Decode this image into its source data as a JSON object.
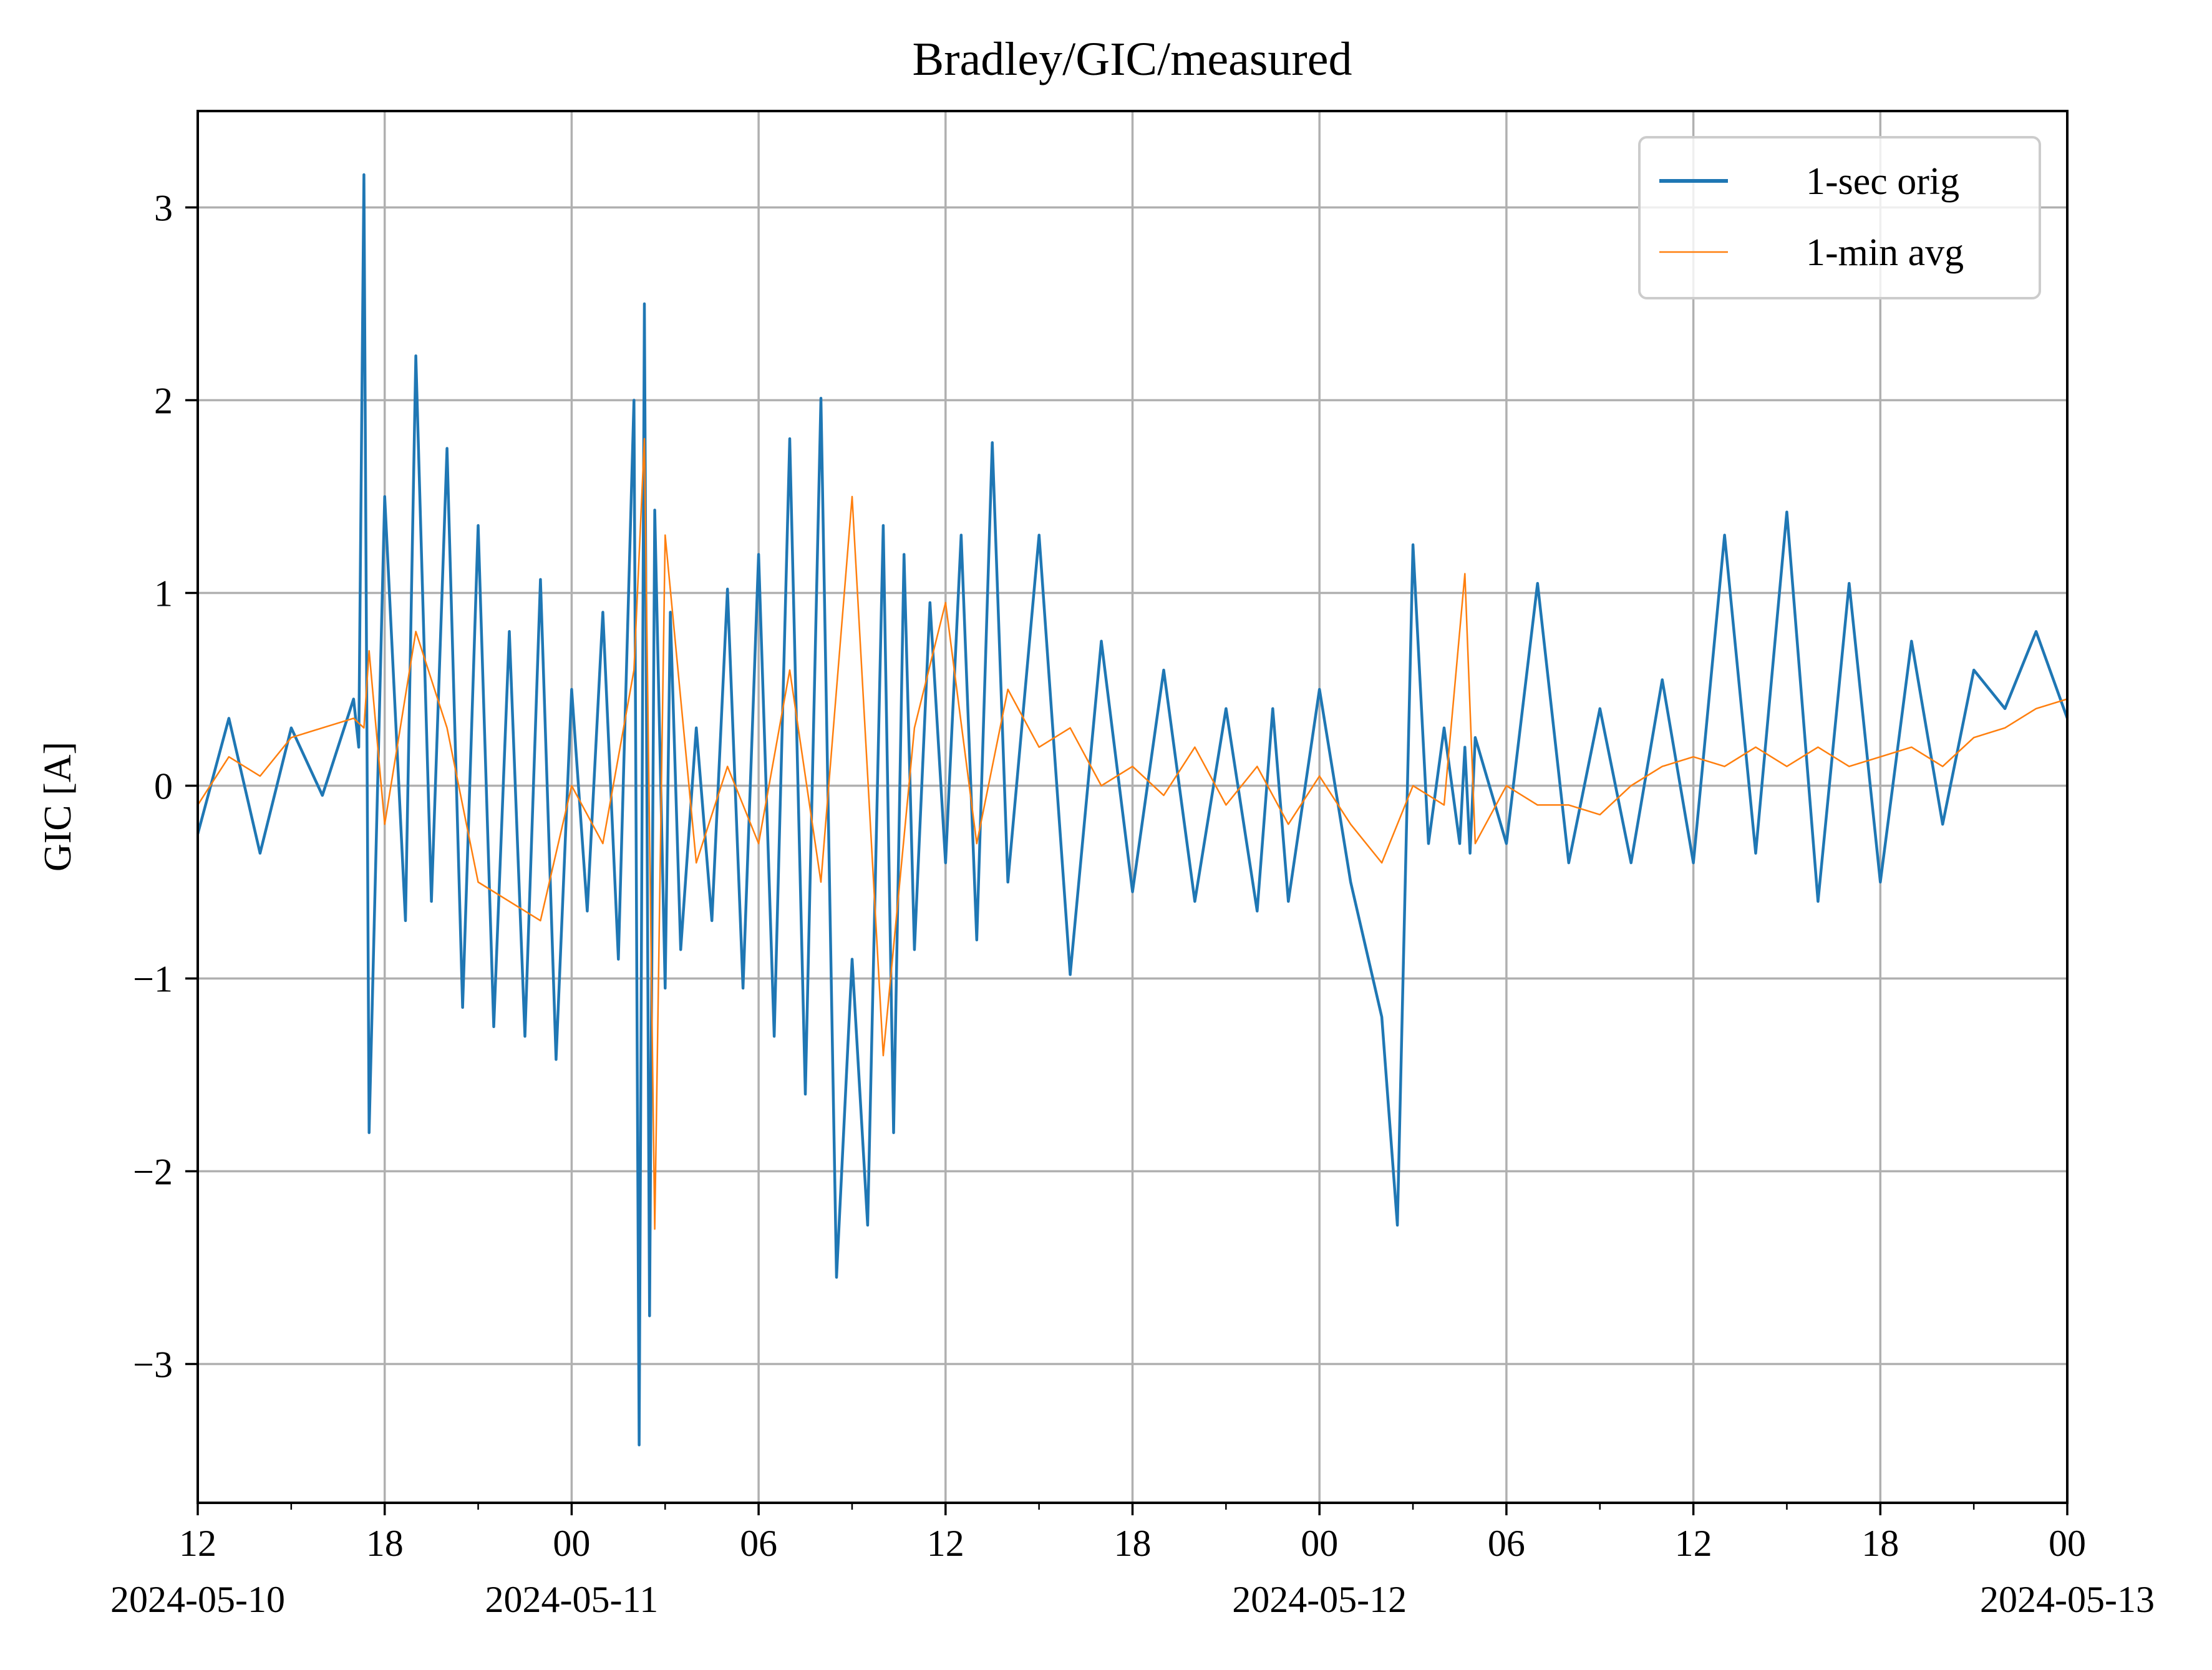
{
  "chart_data": {
    "type": "line",
    "title": "Bradley/GIC/measured",
    "xlabel": "",
    "ylabel": "GIC [A]",
    "xlim": [
      "2024-05-10 12:00",
      "2024-05-13 00:00"
    ],
    "ylim": [
      -3.72,
      3.5
    ],
    "grid": true,
    "legend_position": "top-right",
    "x_ticks": [
      {
        "value": "2024-05-10 12:00",
        "label": "12",
        "date_label": "2024-05-10"
      },
      {
        "value": "2024-05-10 18:00",
        "label": "18",
        "date_label": ""
      },
      {
        "value": "2024-05-11 00:00",
        "label": "00",
        "date_label": "2024-05-11"
      },
      {
        "value": "2024-05-11 06:00",
        "label": "06",
        "date_label": ""
      },
      {
        "value": "2024-05-11 12:00",
        "label": "12",
        "date_label": ""
      },
      {
        "value": "2024-05-11 18:00",
        "label": "18",
        "date_label": ""
      },
      {
        "value": "2024-05-12 00:00",
        "label": "00",
        "date_label": "2024-05-12"
      },
      {
        "value": "2024-05-12 06:00",
        "label": "06",
        "date_label": ""
      },
      {
        "value": "2024-05-12 12:00",
        "label": "12",
        "date_label": ""
      },
      {
        "value": "2024-05-12 18:00",
        "label": "18",
        "date_label": ""
      },
      {
        "value": "2024-05-13 00:00",
        "label": "00",
        "date_label": "2024-05-13"
      }
    ],
    "y_ticks": [
      {
        "value": -3,
        "label": "−3"
      },
      {
        "value": -2,
        "label": "−2"
      },
      {
        "value": -1,
        "label": "−1"
      },
      {
        "value": 0,
        "label": "0"
      },
      {
        "value": 1,
        "label": "1"
      },
      {
        "value": 2,
        "label": "2"
      },
      {
        "value": 3,
        "label": "3"
      }
    ],
    "series": [
      {
        "name": "1-sec orig",
        "color": "#1f77b4",
        "x": [
          "2024-05-10 12:00",
          "2024-05-10 13:00",
          "2024-05-10 14:00",
          "2024-05-10 15:00",
          "2024-05-10 16:00",
          "2024-05-10 17:00",
          "2024-05-10 17:10",
          "2024-05-10 17:20",
          "2024-05-10 17:30",
          "2024-05-10 18:00",
          "2024-05-10 18:40",
          "2024-05-10 19:00",
          "2024-05-10 19:30",
          "2024-05-10 20:00",
          "2024-05-10 20:30",
          "2024-05-10 21:00",
          "2024-05-10 21:30",
          "2024-05-10 22:00",
          "2024-05-10 22:30",
          "2024-05-10 23:00",
          "2024-05-10 23:30",
          "2024-05-11 00:00",
          "2024-05-11 00:30",
          "2024-05-11 01:00",
          "2024-05-11 01:30",
          "2024-05-11 02:00",
          "2024-05-11 02:10",
          "2024-05-11 02:20",
          "2024-05-11 02:30",
          "2024-05-11 02:40",
          "2024-05-11 03:00",
          "2024-05-11 03:10",
          "2024-05-11 03:30",
          "2024-05-11 04:00",
          "2024-05-11 04:30",
          "2024-05-11 05:00",
          "2024-05-11 05:30",
          "2024-05-11 06:00",
          "2024-05-11 06:30",
          "2024-05-11 07:00",
          "2024-05-11 07:30",
          "2024-05-11 08:00",
          "2024-05-11 08:30",
          "2024-05-11 09:00",
          "2024-05-11 09:30",
          "2024-05-11 10:00",
          "2024-05-11 10:20",
          "2024-05-11 10:40",
          "2024-05-11 11:00",
          "2024-05-11 11:30",
          "2024-05-11 12:00",
          "2024-05-11 12:30",
          "2024-05-11 13:00",
          "2024-05-11 13:30",
          "2024-05-11 14:00",
          "2024-05-11 15:00",
          "2024-05-11 16:00",
          "2024-05-11 17:00",
          "2024-05-11 18:00",
          "2024-05-11 19:00",
          "2024-05-11 20:00",
          "2024-05-11 21:00",
          "2024-05-11 22:00",
          "2024-05-11 22:30",
          "2024-05-11 23:00",
          "2024-05-12 00:00",
          "2024-05-12 01:00",
          "2024-05-12 02:00",
          "2024-05-12 02:30",
          "2024-05-12 03:00",
          "2024-05-12 03:30",
          "2024-05-12 04:00",
          "2024-05-12 04:30",
          "2024-05-12 04:40",
          "2024-05-12 04:50",
          "2024-05-12 05:00",
          "2024-05-12 06:00",
          "2024-05-12 07:00",
          "2024-05-12 08:00",
          "2024-05-12 09:00",
          "2024-05-12 10:00",
          "2024-05-12 11:00",
          "2024-05-12 12:00",
          "2024-05-12 13:00",
          "2024-05-12 14:00",
          "2024-05-12 15:00",
          "2024-05-12 16:00",
          "2024-05-12 17:00",
          "2024-05-12 18:00",
          "2024-05-12 19:00",
          "2024-05-12 20:00",
          "2024-05-12 21:00",
          "2024-05-12 22:00",
          "2024-05-12 23:00",
          "2024-05-13 00:00"
        ],
        "y": [
          -0.25,
          0.35,
          -0.35,
          0.3,
          -0.05,
          0.45,
          0.2,
          3.17,
          -1.8,
          1.5,
          -0.7,
          2.23,
          -0.6,
          1.75,
          -1.15,
          1.35,
          -1.25,
          0.8,
          -1.3,
          1.07,
          -1.42,
          0.5,
          -0.65,
          0.9,
          -0.9,
          2.0,
          -3.42,
          2.5,
          -2.75,
          1.43,
          -1.05,
          0.9,
          -0.85,
          0.3,
          -0.7,
          1.02,
          -1.05,
          1.2,
          -1.3,
          1.8,
          -1.6,
          2.01,
          -2.55,
          -0.9,
          -2.28,
          1.35,
          -1.8,
          1.2,
          -0.85,
          0.95,
          -0.4,
          1.3,
          -0.8,
          1.78,
          -0.5,
          1.3,
          -0.98,
          0.75,
          -0.55,
          0.6,
          -0.6,
          0.4,
          -0.65,
          0.4,
          -0.6,
          0.5,
          -0.5,
          -1.2,
          -2.28,
          1.25,
          -0.3,
          0.3,
          -0.3,
          0.2,
          -0.35,
          0.25,
          -0.3,
          1.05,
          -0.4,
          0.4,
          -0.4,
          0.55,
          -0.4,
          1.3,
          -0.35,
          1.42,
          -0.6,
          1.05,
          -0.5,
          0.75,
          -0.2,
          0.6,
          0.4,
          0.8,
          0.35
        ]
      },
      {
        "name": "1-min avg",
        "color": "#ff7f0e",
        "x": [
          "2024-05-10 12:00",
          "2024-05-10 13:00",
          "2024-05-10 14:00",
          "2024-05-10 15:00",
          "2024-05-10 16:00",
          "2024-05-10 17:00",
          "2024-05-10 17:20",
          "2024-05-10 17:30",
          "2024-05-10 18:00",
          "2024-05-10 19:00",
          "2024-05-10 20:00",
          "2024-05-10 21:00",
          "2024-05-10 22:00",
          "2024-05-10 23:00",
          "2024-05-11 00:00",
          "2024-05-11 01:00",
          "2024-05-11 02:00",
          "2024-05-11 02:20",
          "2024-05-11 02:40",
          "2024-05-11 03:00",
          "2024-05-11 04:00",
          "2024-05-11 05:00",
          "2024-05-11 06:00",
          "2024-05-11 07:00",
          "2024-05-11 08:00",
          "2024-05-11 09:00",
          "2024-05-11 10:00",
          "2024-05-11 11:00",
          "2024-05-11 12:00",
          "2024-05-11 13:00",
          "2024-05-11 14:00",
          "2024-05-11 15:00",
          "2024-05-11 16:00",
          "2024-05-11 17:00",
          "2024-05-11 18:00",
          "2024-05-11 19:00",
          "2024-05-11 20:00",
          "2024-05-11 21:00",
          "2024-05-11 22:00",
          "2024-05-11 23:00",
          "2024-05-12 00:00",
          "2024-05-12 01:00",
          "2024-05-12 02:00",
          "2024-05-12 03:00",
          "2024-05-12 04:00",
          "2024-05-12 04:40",
          "2024-05-12 05:00",
          "2024-05-12 06:00",
          "2024-05-12 07:00",
          "2024-05-12 08:00",
          "2024-05-12 09:00",
          "2024-05-12 10:00",
          "2024-05-12 11:00",
          "2024-05-12 12:00",
          "2024-05-12 13:00",
          "2024-05-12 14:00",
          "2024-05-12 15:00",
          "2024-05-12 16:00",
          "2024-05-12 17:00",
          "2024-05-12 18:00",
          "2024-05-12 19:00",
          "2024-05-12 20:00",
          "2024-05-12 21:00",
          "2024-05-12 22:00",
          "2024-05-12 23:00",
          "2024-05-13 00:00"
        ],
        "y": [
          -0.1,
          0.15,
          0.05,
          0.25,
          0.3,
          0.35,
          0.3,
          0.7,
          -0.2,
          0.8,
          0.3,
          -0.5,
          -0.6,
          -0.7,
          0.0,
          -0.3,
          0.6,
          1.8,
          -2.3,
          1.3,
          -0.4,
          0.1,
          -0.3,
          0.6,
          -0.5,
          1.5,
          -1.4,
          0.3,
          0.95,
          -0.3,
          0.5,
          0.2,
          0.3,
          0.0,
          0.1,
          -0.05,
          0.2,
          -0.1,
          0.1,
          -0.2,
          0.05,
          -0.2,
          -0.4,
          0.0,
          -0.1,
          1.1,
          -0.3,
          0.0,
          -0.1,
          -0.1,
          -0.15,
          0.0,
          0.1,
          0.15,
          0.1,
          0.2,
          0.1,
          0.2,
          0.1,
          0.15,
          0.2,
          0.1,
          0.25,
          0.3,
          0.4,
          0.45
        ]
      }
    ]
  }
}
